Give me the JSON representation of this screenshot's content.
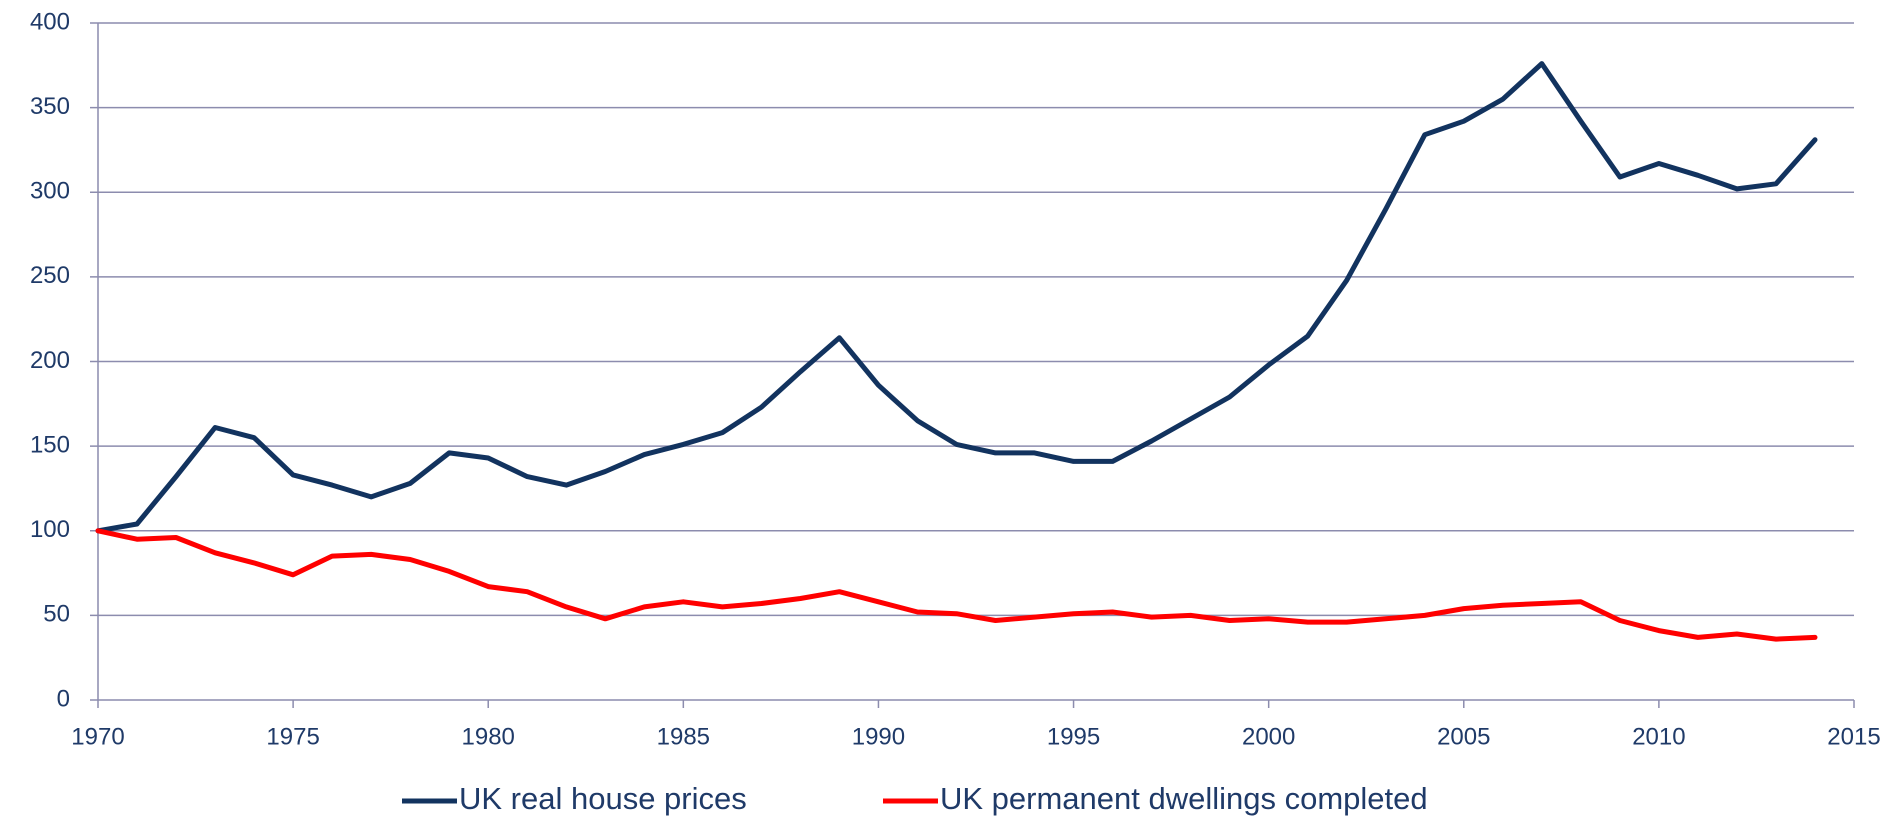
{
  "chart_data": {
    "type": "line",
    "x": [
      1970,
      1971,
      1972,
      1973,
      1974,
      1975,
      1976,
      1977,
      1978,
      1979,
      1980,
      1981,
      1982,
      1983,
      1984,
      1985,
      1986,
      1987,
      1988,
      1989,
      1990,
      1991,
      1992,
      1993,
      1994,
      1995,
      1996,
      1997,
      1998,
      1999,
      2000,
      2001,
      2002,
      2003,
      2004,
      2005,
      2006,
      2007,
      2008,
      2009,
      2010,
      2011,
      2012,
      2013,
      2014
    ],
    "series": [
      {
        "name": "UK real house prices",
        "color": "#12335f",
        "values": [
          100,
          104,
          132,
          161,
          155,
          133,
          127,
          120,
          128,
          146,
          143,
          132,
          127,
          135,
          145,
          151,
          158,
          173,
          194,
          214,
          186,
          165,
          151,
          146,
          146,
          141,
          141,
          153,
          166,
          179,
          198,
          215,
          248,
          290,
          334,
          342,
          355,
          376,
          342,
          309,
          317,
          310,
          302,
          305,
          331
        ]
      },
      {
        "name": "UK permanent dwellings completed",
        "color": "#ff0000",
        "values": [
          100,
          95,
          96,
          87,
          81,
          74,
          85,
          86,
          83,
          76,
          67,
          64,
          55,
          48,
          55,
          58,
          55,
          57,
          60,
          64,
          58,
          52,
          51,
          47,
          49,
          51,
          52,
          49,
          50,
          47,
          48,
          46,
          46,
          48,
          50,
          54,
          56,
          57,
          58,
          47,
          41,
          37,
          39,
          36,
          37
        ]
      }
    ],
    "xlim": [
      1970,
      2015
    ],
    "xticks": [
      1970,
      1975,
      1980,
      1985,
      1990,
      1995,
      2000,
      2005,
      2010,
      2015
    ],
    "ylim": [
      0,
      400
    ],
    "yticks": [
      0,
      50,
      100,
      150,
      200,
      250,
      300,
      350,
      400
    ],
    "grid": true,
    "legend": "bottom"
  }
}
